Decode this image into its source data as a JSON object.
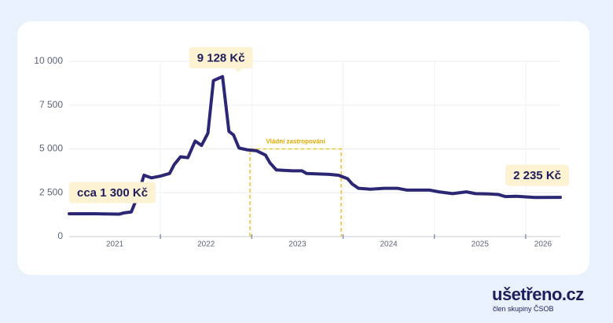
{
  "chart_data": {
    "type": "line",
    "x": [
      2021.0,
      2021.3,
      2021.55,
      2021.6,
      2021.68,
      2021.75,
      2021.82,
      2021.9,
      2022.0,
      2022.1,
      2022.15,
      2022.22,
      2022.3,
      2022.38,
      2022.45,
      2022.52,
      2022.58,
      2022.68,
      2022.75,
      2022.8,
      2022.86,
      2022.95,
      2023.05,
      2023.15,
      2023.2,
      2023.27,
      2023.45,
      2023.55,
      2023.6,
      2023.85,
      2023.95,
      2024.05,
      2024.1,
      2024.17,
      2024.3,
      2024.45,
      2024.6,
      2024.7,
      2024.8,
      2024.95,
      2025.05,
      2025.2,
      2025.35,
      2025.45,
      2025.6,
      2025.7,
      2025.78,
      2025.9,
      2026.1,
      2026.38
    ],
    "series": [
      {
        "color": "#2b2775",
        "values": [
          1300,
          1300,
          1280,
          1350,
          1400,
          2300,
          3500,
          3350,
          3450,
          3600,
          4100,
          4550,
          4500,
          5450,
          5200,
          5900,
          8900,
          9128,
          6000,
          5800,
          5050,
          4950,
          4900,
          4650,
          4200,
          3800,
          3750,
          3750,
          3600,
          3550,
          3500,
          3300,
          3000,
          2750,
          2700,
          2750,
          2750,
          2650,
          2650,
          2650,
          2550,
          2450,
          2550,
          2450,
          2430,
          2400,
          2280,
          2300,
          2230,
          2235
        ]
      }
    ],
    "xlim": [
      2021.0,
      2026.38
    ],
    "xticks": [
      2022,
      2023,
      2024,
      2025,
      2026
    ],
    "year_labels": [
      2021,
      2022,
      2023,
      2024,
      2025,
      2026
    ],
    "ylim": [
      0,
      10000
    ],
    "yticks": [
      0,
      {
        "value": 2500,
        "label": "2 500"
      },
      {
        "value": 5000,
        "label": "5 000"
      },
      {
        "value": 7500,
        "label": "7 500"
      },
      {
        "value": 10000,
        "label": "10 000"
      }
    ],
    "grid": true,
    "callouts": [
      {
        "text": "9 128 Kč",
        "x": 2022.68,
        "y": 9128
      },
      {
        "text": "cca 1 300 Kč",
        "x": 2021.0,
        "y": 1300
      },
      {
        "text": "2 235 Kč",
        "x": 2026.38,
        "y": 2235
      }
    ],
    "cap_box": {
      "text": "Vládní zastropování",
      "x": [
        2022.98,
        2023.98
      ],
      "y": 5000
    }
  },
  "footer": {
    "brand": "ušetřeno.cz",
    "tagline": "člen skupiny ČSOB"
  }
}
